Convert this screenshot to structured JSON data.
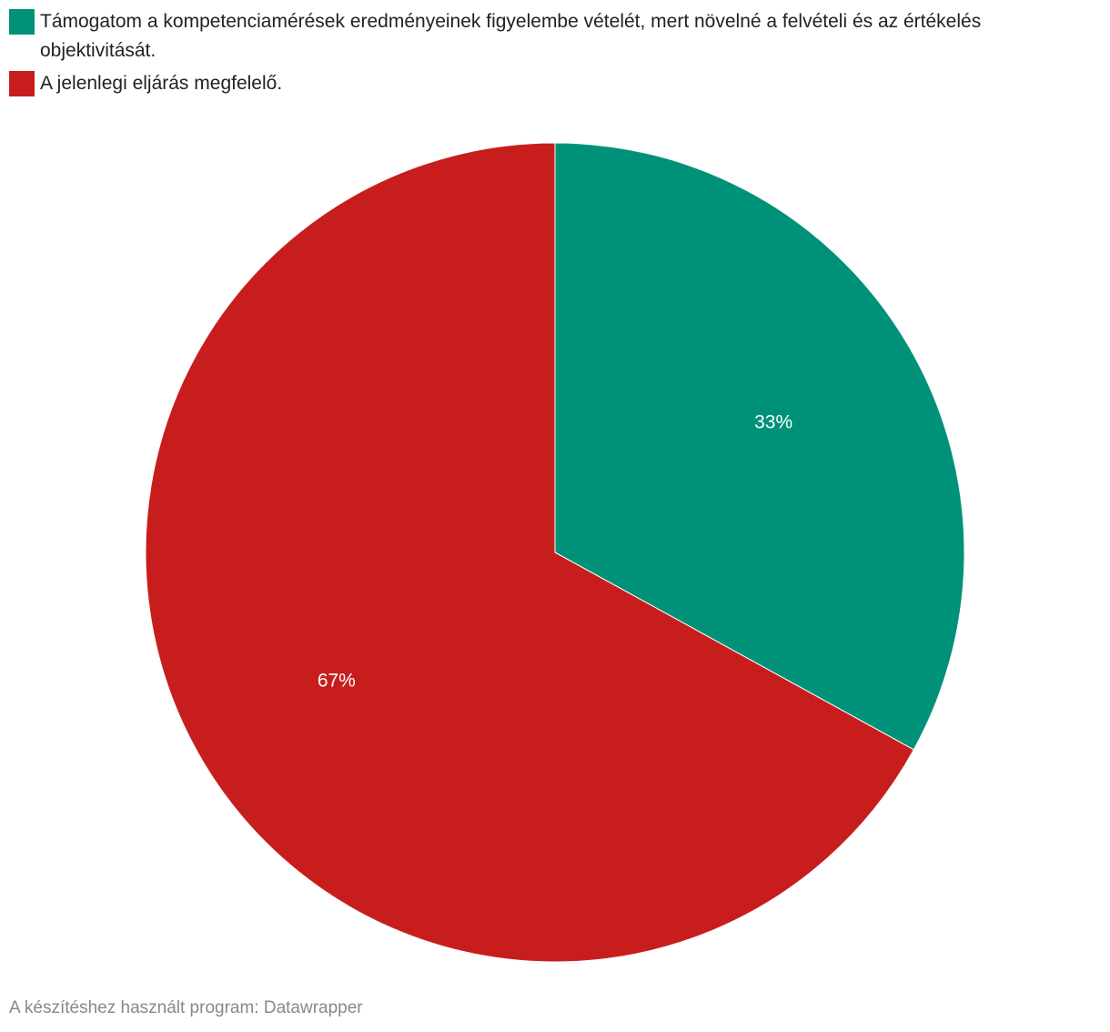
{
  "chart_data": {
    "type": "pie",
    "categories": [
      "Támogatom a kompetenciamérések eredményeinek figyelembe vételét, mert növelné a felvételi és az értékelés objektivitását.",
      "A jelenlegi eljárás megfelelő."
    ],
    "values": [
      33,
      67
    ],
    "value_labels": [
      "33%",
      "67%"
    ],
    "colors": [
      "#009279",
      "#c71e1d"
    ],
    "credit": "A készítéshez használt program: Datawrapper"
  }
}
